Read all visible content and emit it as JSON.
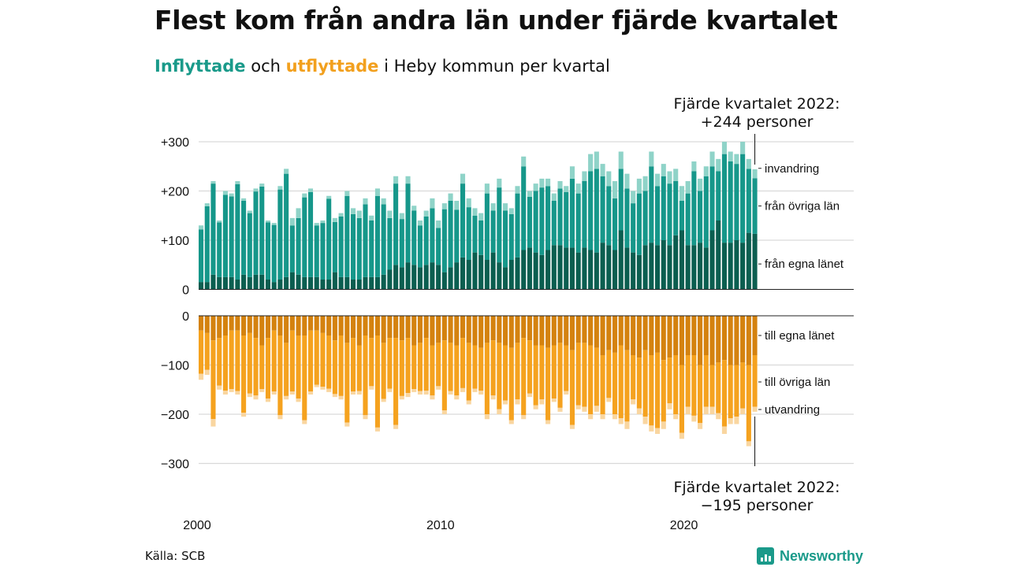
{
  "title": "Flest kom från andra län under fjärde kvartalet",
  "subtitle": {
    "in_word": "Inflyttade",
    "and_word": "och",
    "out_word": "utflyttade",
    "rest": "i Heby kommun per kvartal"
  },
  "source": "Källa: SCB",
  "logo": "Newsworthy",
  "chart_data": {
    "type": "bar",
    "stacked": true,
    "grid": true,
    "x_ticks": [
      "2000",
      "2010",
      "2020"
    ],
    "x_range": [
      "2000 Q1",
      "2022 Q4"
    ],
    "top_panel": {
      "ylim": [
        0,
        300
      ],
      "y_ticks": [
        "0",
        "+100",
        "+200",
        "+300"
      ],
      "series_labels": [
        "från egna länet",
        "från övriga län",
        "invandring"
      ],
      "colors": [
        "#0b5e50",
        "#16978a",
        "#8fd3c8"
      ],
      "annotation": [
        "Fjärde kvartalet 2022:",
        "+244 personer"
      ],
      "last_quarter": {
        "from_own_county": 113,
        "from_other_counties": 113,
        "immigration": 18,
        "total": 244
      }
    },
    "bottom_panel": {
      "ylim": [
        -300,
        0
      ],
      "y_ticks": [
        "0",
        "−100",
        "−200",
        "−300"
      ],
      "series_labels": [
        "till egna länet",
        "till övriga län",
        "utvandring"
      ],
      "colors": [
        "#d4820f",
        "#f5a21f",
        "#f9d6a0"
      ],
      "annotation": [
        "Fjärde kvartalet 2022:",
        "−195 personer"
      ],
      "last_quarter": {
        "to_own_county": -80,
        "to_other_counties": -105,
        "emigration": -10,
        "total": -195
      }
    },
    "quarters": [
      "2000 Q1",
      "2000 Q2",
      "2000 Q3",
      "2000 Q4",
      "2001 Q1",
      "2001 Q2",
      "2001 Q3",
      "2001 Q4",
      "2002 Q1",
      "2002 Q2",
      "2002 Q3",
      "2002 Q4",
      "2003 Q1",
      "2003 Q2",
      "2003 Q3",
      "2003 Q4",
      "2004 Q1",
      "2004 Q2",
      "2004 Q3",
      "2004 Q4",
      "2005 Q1",
      "2005 Q2",
      "2005 Q3",
      "2005 Q4",
      "2006 Q1",
      "2006 Q2",
      "2006 Q3",
      "2006 Q4",
      "2007 Q1",
      "2007 Q2",
      "2007 Q3",
      "2007 Q4",
      "2008 Q1",
      "2008 Q2",
      "2008 Q3",
      "2008 Q4",
      "2009 Q1",
      "2009 Q2",
      "2009 Q3",
      "2009 Q4",
      "2010 Q1",
      "2010 Q2",
      "2010 Q3",
      "2010 Q4",
      "2011 Q1",
      "2011 Q2",
      "2011 Q3",
      "2011 Q4",
      "2012 Q1",
      "2012 Q2",
      "2012 Q3",
      "2012 Q4",
      "2013 Q1",
      "2013 Q2",
      "2013 Q3",
      "2013 Q4",
      "2014 Q1",
      "2014 Q2",
      "2014 Q3",
      "2014 Q4",
      "2015 Q1",
      "2015 Q2",
      "2015 Q3",
      "2015 Q4",
      "2016 Q1",
      "2016 Q2",
      "2016 Q3",
      "2016 Q4",
      "2017 Q1",
      "2017 Q2",
      "2017 Q3",
      "2017 Q4",
      "2018 Q1",
      "2018 Q2",
      "2018 Q3",
      "2018 Q4",
      "2019 Q1",
      "2019 Q2",
      "2019 Q3",
      "2019 Q4",
      "2020 Q1",
      "2020 Q2",
      "2020 Q3",
      "2020 Q4",
      "2021 Q1",
      "2021 Q2",
      "2021 Q3",
      "2021 Q4",
      "2022 Q1",
      "2022 Q2",
      "2022 Q3",
      "2022 Q4"
    ],
    "in_total": [
      130,
      175,
      220,
      140,
      200,
      195,
      220,
      185,
      160,
      205,
      215,
      140,
      135,
      210,
      245,
      145,
      165,
      195,
      205,
      135,
      140,
      190,
      145,
      155,
      200,
      165,
      160,
      185,
      150,
      205,
      185,
      160,
      230,
      155,
      230,
      170,
      140,
      160,
      185,
      140,
      175,
      195,
      180,
      235,
      185,
      165,
      155,
      215,
      175,
      225,
      175,
      165,
      210,
      270,
      200,
      215,
      225,
      225,
      195,
      220,
      210,
      250,
      215,
      240,
      275,
      280,
      255,
      240,
      220,
      280,
      235,
      200,
      225,
      230,
      280,
      235,
      255,
      240,
      245,
      210,
      220,
      260,
      225,
      250,
      280,
      265,
      300,
      280,
      275,
      300,
      265,
      244
    ],
    "in_immigration": [
      8,
      6,
      5,
      4,
      8,
      6,
      6,
      5,
      5,
      6,
      6,
      4,
      4,
      7,
      10,
      15,
      20,
      8,
      7,
      5,
      5,
      6,
      8,
      7,
      10,
      12,
      15,
      12,
      10,
      15,
      12,
      15,
      15,
      12,
      15,
      10,
      10,
      12,
      20,
      15,
      12,
      15,
      18,
      20,
      18,
      15,
      15,
      20,
      15,
      18,
      15,
      12,
      15,
      20,
      12,
      15,
      18,
      15,
      15,
      15,
      12,
      25,
      20,
      20,
      35,
      35,
      25,
      30,
      35,
      35,
      30,
      25,
      30,
      30,
      30,
      25,
      25,
      25,
      25,
      30,
      25,
      20,
      25,
      20,
      30,
      25,
      25,
      20,
      20,
      25,
      20,
      18
    ],
    "in_own_county": [
      15,
      15,
      30,
      25,
      25,
      25,
      20,
      30,
      25,
      30,
      30,
      20,
      15,
      20,
      25,
      35,
      30,
      25,
      25,
      25,
      20,
      20,
      35,
      25,
      25,
      20,
      20,
      25,
      25,
      25,
      30,
      40,
      50,
      45,
      55,
      50,
      45,
      50,
      55,
      50,
      35,
      45,
      55,
      65,
      60,
      75,
      70,
      60,
      75,
      55,
      45,
      60,
      65,
      80,
      85,
      75,
      70,
      80,
      90,
      90,
      85,
      85,
      75,
      85,
      80,
      75,
      95,
      90,
      80,
      120,
      85,
      75,
      70,
      90,
      95,
      90,
      100,
      90,
      110,
      120,
      90,
      90,
      95,
      85,
      120,
      140,
      95,
      95,
      100,
      95,
      115,
      113
    ],
    "out_total": [
      130,
      120,
      225,
      150,
      160,
      155,
      160,
      205,
      165,
      170,
      155,
      175,
      160,
      210,
      170,
      160,
      175,
      220,
      160,
      145,
      150,
      155,
      165,
      170,
      225,
      160,
      160,
      210,
      150,
      235,
      175,
      155,
      230,
      170,
      165,
      155,
      160,
      160,
      170,
      150,
      200,
      160,
      170,
      155,
      180,
      155,
      160,
      210,
      170,
      200,
      180,
      220,
      180,
      210,
      165,
      190,
      180,
      220,
      175,
      195,
      160,
      230,
      190,
      195,
      210,
      195,
      210,
      175,
      210,
      220,
      230,
      180,
      200,
      220,
      235,
      240,
      230,
      190,
      210,
      250,
      200,
      215,
      230,
      200,
      200,
      210,
      240,
      220,
      220,
      200,
      265,
      195
    ],
    "out_emigration": [
      12,
      10,
      15,
      8,
      8,
      6,
      7,
      8,
      7,
      8,
      6,
      7,
      6,
      8,
      7,
      6,
      7,
      8,
      6,
      5,
      6,
      7,
      6,
      7,
      8,
      6,
      7,
      8,
      7,
      8,
      6,
      7,
      8,
      7,
      8,
      6,
      7,
      8,
      8,
      7,
      8,
      7,
      8,
      8,
      8,
      7,
      8,
      10,
      8,
      10,
      8,
      8,
      10,
      8,
      7,
      8,
      10,
      8,
      7,
      8,
      7,
      8,
      8,
      10,
      10,
      12,
      10,
      8,
      10,
      12,
      15,
      10,
      12,
      15,
      12,
      12,
      15,
      12,
      10,
      12,
      15,
      12,
      12,
      15,
      15,
      12,
      15,
      12,
      15,
      12,
      10,
      10
    ],
    "out_own_county": [
      30,
      35,
      50,
      45,
      40,
      30,
      30,
      40,
      35,
      45,
      60,
      45,
      30,
      40,
      55,
      30,
      40,
      40,
      30,
      30,
      35,
      40,
      50,
      40,
      55,
      45,
      60,
      40,
      45,
      40,
      55,
      45,
      45,
      50,
      45,
      60,
      55,
      45,
      60,
      55,
      50,
      55,
      60,
      45,
      55,
      60,
      65,
      55,
      50,
      55,
      60,
      65,
      55,
      45,
      50,
      60,
      60,
      65,
      60,
      55,
      60,
      70,
      55,
      55,
      60,
      65,
      80,
      70,
      75,
      60,
      70,
      80,
      85,
      70,
      80,
      75,
      90,
      85,
      80,
      100,
      80,
      80,
      100,
      80,
      100,
      95,
      90,
      100,
      100,
      95,
      100,
      80
    ]
  }
}
